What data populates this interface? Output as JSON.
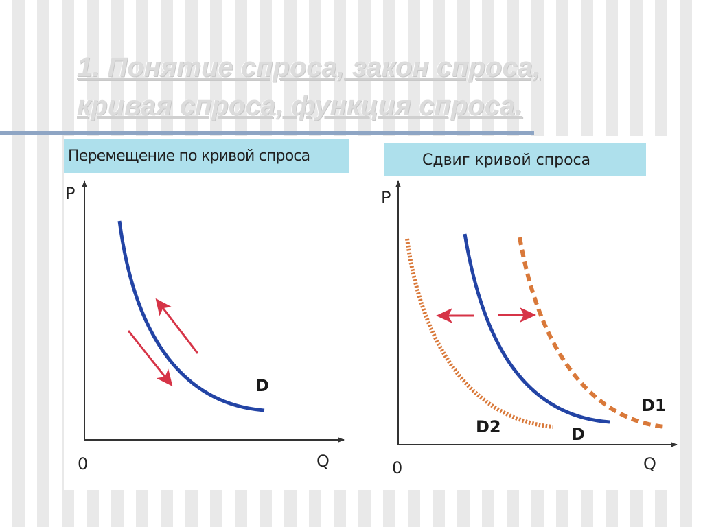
{
  "slide": {
    "title": "1. Понятие спроса, закон спроса, кривая спроса, функция спроса."
  },
  "left_panel": {
    "header": "Перемещение по кривой спроса",
    "y_axis_label": "P",
    "x_axis_label": "Q",
    "origin_label": "0",
    "curve_label": "D"
  },
  "right_panel": {
    "header": "Сдвиг кривой спроса",
    "y_axis_label": "P",
    "x_axis_label": "Q",
    "origin_label": "0",
    "curve_d_label": "D",
    "curve_d1_label": "D1",
    "curve_d2_label": "D2"
  },
  "colors": {
    "curve_d": "#2344a5",
    "curve_shifted": "#d9793a",
    "arrow": "#d63447",
    "axis": "#333333",
    "header_bg": "#aee0ec",
    "title_rule": "#8ea5c4"
  }
}
